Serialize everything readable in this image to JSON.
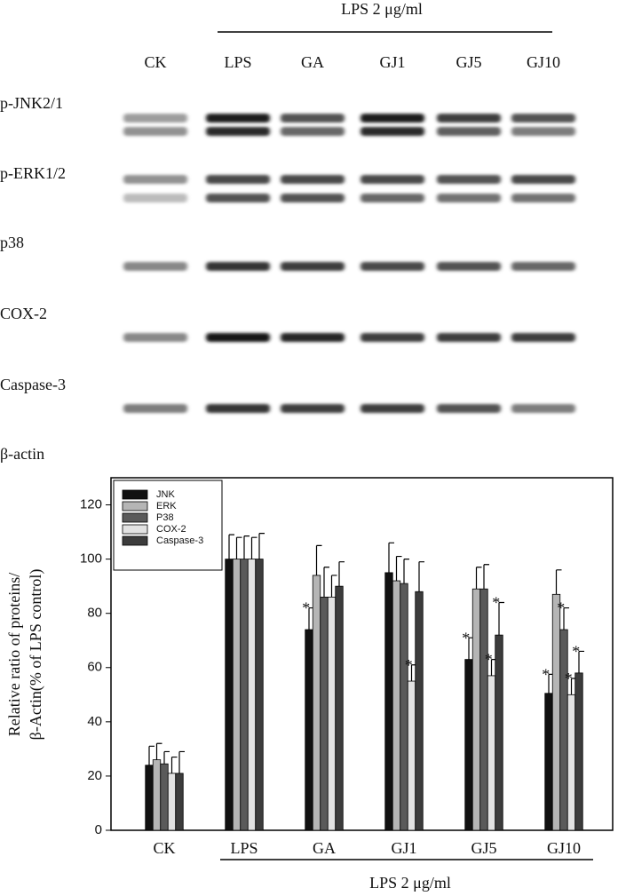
{
  "blot": {
    "header": "LPS 2 μg/ml",
    "lanes": [
      "CK",
      "LPS",
      "GA",
      "GJ1",
      "GJ5",
      "GJ10"
    ],
    "rows": [
      "p-JNK2/1",
      "p-ERK1/2",
      "p38",
      "COX-2",
      "Caspase-3",
      "β-actin"
    ]
  },
  "chart_data": {
    "type": "bar",
    "y_label": [
      "Relative ratio of proteins/",
      "β-Actin(% of LPS control)"
    ],
    "group_label": "LPS 2 μg/ml",
    "significance_marker": "*",
    "categories": [
      "CK",
      "LPS",
      "GA",
      "GJ1",
      "GJ5",
      "GJ10"
    ],
    "series": [
      {
        "name": "JNK",
        "color": "#111111",
        "values": [
          24,
          100,
          74,
          95,
          63,
          50.5
        ],
        "errors": [
          7,
          9,
          8,
          11,
          8,
          7
        ],
        "significant": [
          false,
          false,
          true,
          false,
          true,
          true
        ]
      },
      {
        "name": "ERK",
        "color": "#b5b5b5",
        "values": [
          26,
          100,
          94,
          92,
          89,
          87
        ],
        "errors": [
          6,
          8,
          11,
          9,
          8,
          9
        ],
        "significant": [
          false,
          false,
          false,
          false,
          false,
          false
        ]
      },
      {
        "name": "P38",
        "color": "#5a5a5a",
        "values": [
          24.5,
          100,
          86,
          91,
          89,
          74
        ],
        "errors": [
          4.5,
          8.5,
          11,
          9,
          9,
          8
        ],
        "significant": [
          false,
          false,
          false,
          false,
          false,
          true
        ]
      },
      {
        "name": "COX-2",
        "color": "#e2e2e2",
        "values": [
          21,
          100,
          86,
          55,
          57,
          50
        ],
        "errors": [
          6,
          8,
          8,
          6,
          6,
          6
        ],
        "significant": [
          false,
          false,
          false,
          true,
          true,
          true
        ]
      },
      {
        "name": "Caspase-3",
        "color": "#3c3c3c",
        "values": [
          21,
          100,
          90,
          88,
          72,
          58
        ],
        "errors": [
          8,
          9.5,
          9,
          11,
          12,
          8
        ],
        "significant": [
          false,
          false,
          false,
          false,
          true,
          true
        ]
      }
    ],
    "ylim": [
      0,
      130
    ],
    "yticks": [
      0,
      20,
      40,
      60,
      80,
      100,
      120
    ]
  }
}
